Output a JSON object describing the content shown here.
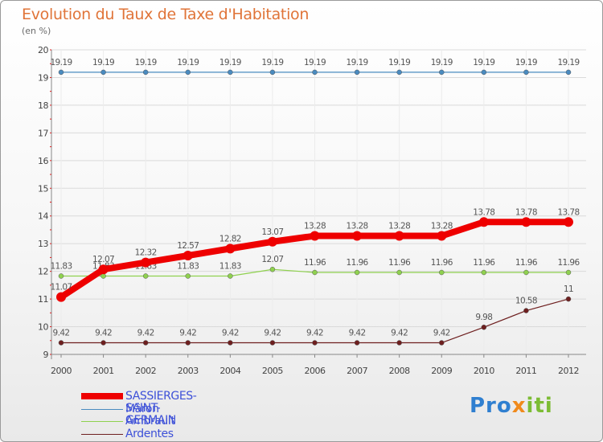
{
  "header": {
    "title": "Evolution du Taux de Taxe d'Habitation",
    "subtitle": "(en %)"
  },
  "chart_data": {
    "type": "line",
    "x": [
      "2000",
      "2001",
      "2002",
      "2003",
      "2004",
      "2005",
      "2006",
      "2007",
      "2008",
      "2009",
      "2010",
      "2011",
      "2012"
    ],
    "ylim": [
      9,
      20
    ],
    "yticks": [
      9,
      10,
      11,
      12,
      13,
      14,
      15,
      16,
      17,
      18,
      19,
      20
    ],
    "grid": true,
    "legend_position": "bottom-left",
    "series": [
      {
        "name": "Mâron",
        "color": "#4a8bc0",
        "values": [
          19.19,
          19.19,
          19.19,
          19.19,
          19.19,
          19.19,
          19.19,
          19.19,
          19.19,
          19.19,
          19.19,
          19.19,
          19.19
        ],
        "labels": [
          "19.19",
          "19.19",
          "19.19",
          "19.19",
          "19.19",
          "19.19",
          "19.19",
          "19.19",
          "19.19",
          "19.19",
          "19.19",
          "19.19",
          "19.19"
        ]
      },
      {
        "name": "Ambrault",
        "color": "#8fd14f",
        "values": [
          11.83,
          11.83,
          11.83,
          11.83,
          11.83,
          12.07,
          11.96,
          11.96,
          11.96,
          11.96,
          11.96,
          11.96,
          11.96
        ],
        "labels": [
          "11.83",
          "11.83",
          "11.83",
          "11.83",
          "11.83",
          "12.07",
          "11.96",
          "11.96",
          "11.96",
          "11.96",
          "11.96",
          "11.96",
          "11.96"
        ]
      },
      {
        "name": "Ardentes",
        "color": "#6e1f1f",
        "values": [
          9.42,
          9.42,
          9.42,
          9.42,
          9.42,
          9.42,
          9.42,
          9.42,
          9.42,
          9.42,
          9.98,
          10.58,
          11
        ],
        "labels": [
          "9.42",
          "9.42",
          "9.42",
          "9.42",
          "9.42",
          "9.42",
          "9.42",
          "9.42",
          "9.42",
          "9.42",
          "9.98",
          "10.58",
          "11"
        ]
      },
      {
        "name": "SASSIERGES-SAINT-GERMAIN",
        "color": "#ee0000",
        "values": [
          11.07,
          12.07,
          12.32,
          12.57,
          12.82,
          13.07,
          13.28,
          13.28,
          13.28,
          13.28,
          13.78,
          13.78,
          13.78
        ],
        "labels": [
          "11.07",
          "12.07",
          "12.32",
          "12.57",
          "12.82",
          "13.07",
          "13.28",
          "13.28",
          "13.28",
          "13.28",
          "13.78",
          "13.78",
          "13.78"
        ]
      }
    ]
  },
  "legend": {
    "items": [
      {
        "label": "SASSIERGES-SAINT-GERMAIN",
        "color": "#ee0000"
      },
      {
        "label": "Mâron",
        "color": "#4a8bc0"
      },
      {
        "label": "Ambrault",
        "color": "#8fd14f"
      },
      {
        "label": "Ardentes",
        "color": "#6e1f1f"
      }
    ]
  },
  "logo": {
    "text": "Proxiti"
  }
}
